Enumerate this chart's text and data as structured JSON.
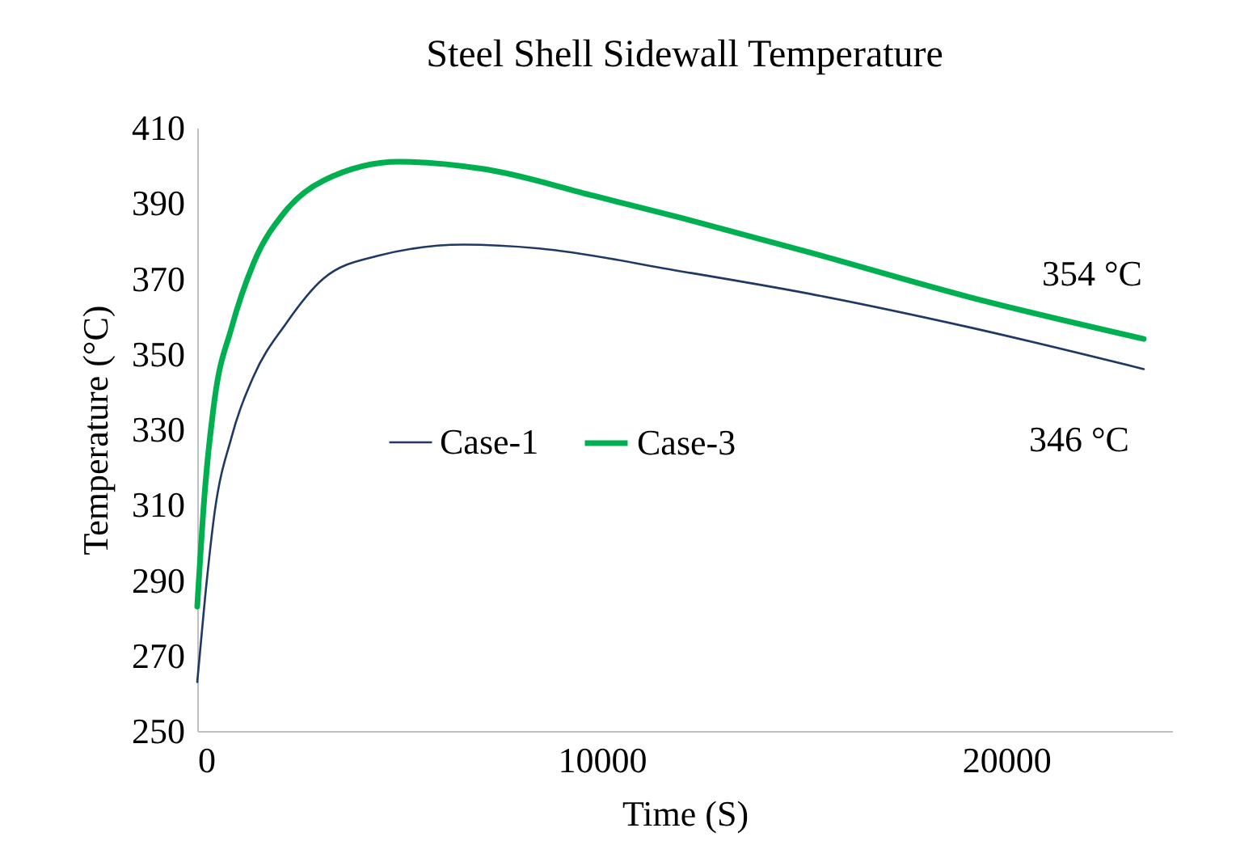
{
  "chart_data": {
    "type": "line",
    "title": "Steel Shell Sidewall Temperature",
    "xlabel": "Time (S)",
    "ylabel": "Temperature (°C)",
    "series": [
      {
        "name": "Case-1",
        "color": "#203864",
        "x": [
          0,
          190,
          430,
          850,
          1390,
          2190,
          3120,
          4450,
          6590,
          8450,
          11920,
          15120,
          19120,
          23400
        ],
        "values": [
          263,
          285,
          308,
          328,
          344,
          358,
          370,
          376,
          379,
          378,
          372,
          366,
          357,
          346
        ]
      },
      {
        "name": "Case-3",
        "color": "#00b050",
        "x": [
          0,
          190,
          430,
          850,
          1390,
          2190,
          3120,
          4990,
          7120,
          9790,
          12000,
          15120,
          19120,
          23400
        ],
        "values": [
          283,
          314,
          338,
          357,
          374,
          388,
          396,
          401,
          399,
          392,
          386,
          377,
          365,
          354
        ]
      }
    ],
    "xlim": [
      0,
      24100
    ],
    "xticks": [
      0,
      10000,
      20000
    ],
    "ylim": [
      250,
      410
    ],
    "yticks": [
      250,
      270,
      290,
      310,
      330,
      350,
      370,
      390,
      410
    ],
    "grid": false,
    "legend": "center",
    "marker": "none",
    "line_style": "solid",
    "annotations": [
      {
        "text": "354 °C",
        "x": 23400,
        "y": 354
      },
      {
        "text": "346 °C",
        "x": 23400,
        "y": 346
      }
    ]
  }
}
